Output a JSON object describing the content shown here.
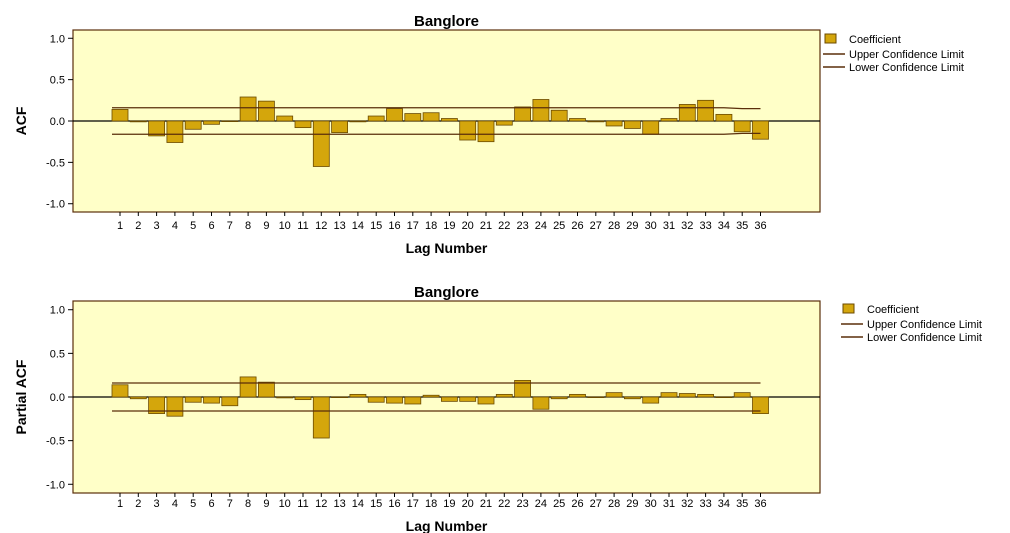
{
  "chart_data": [
    {
      "type": "bar",
      "title": "Banglore",
      "xlabel": "Lag Number",
      "ylabel": "ACF",
      "ylim": [
        -1.1,
        1.1
      ],
      "yticks": [
        "1.0",
        "0.5",
        "0.0",
        "-0.5",
        "-1.0"
      ],
      "categories": [
        "1",
        "2",
        "3",
        "4",
        "5",
        "6",
        "7",
        "8",
        "9",
        "10",
        "11",
        "12",
        "13",
        "14",
        "15",
        "16",
        "17",
        "18",
        "19",
        "20",
        "21",
        "22",
        "23",
        "24",
        "25",
        "26",
        "27",
        "28",
        "29",
        "30",
        "31",
        "32",
        "33",
        "34",
        "35",
        "36"
      ],
      "series": [
        {
          "name": "Coefficient",
          "values": [
            0.14,
            -0.01,
            -0.18,
            -0.26,
            -0.1,
            -0.04,
            0.0,
            0.29,
            0.24,
            0.06,
            -0.08,
            -0.55,
            -0.14,
            -0.01,
            0.06,
            0.15,
            0.09,
            0.1,
            0.03,
            -0.23,
            -0.25,
            -0.05,
            0.17,
            0.26,
            0.13,
            0.03,
            -0.01,
            -0.06,
            -0.09,
            -0.16,
            0.03,
            0.2,
            0.25,
            0.08,
            -0.13,
            -0.22
          ]
        },
        {
          "name": "Upper Confidence Limit",
          "values": [
            0.16,
            0.16,
            0.16,
            0.16,
            0.16,
            0.16,
            0.16,
            0.16,
            0.16,
            0.16,
            0.16,
            0.16,
            0.16,
            0.16,
            0.16,
            0.16,
            0.16,
            0.16,
            0.16,
            0.16,
            0.16,
            0.16,
            0.16,
            0.16,
            0.16,
            0.16,
            0.16,
            0.16,
            0.16,
            0.16,
            0.16,
            0.16,
            0.16,
            0.16,
            0.15,
            0.15
          ]
        },
        {
          "name": "Lower Confidence Limit",
          "values": [
            -0.16,
            -0.16,
            -0.16,
            -0.16,
            -0.16,
            -0.16,
            -0.16,
            -0.16,
            -0.16,
            -0.16,
            -0.16,
            -0.16,
            -0.16,
            -0.16,
            -0.16,
            -0.16,
            -0.16,
            -0.16,
            -0.16,
            -0.16,
            -0.16,
            -0.16,
            -0.16,
            -0.16,
            -0.16,
            -0.16,
            -0.16,
            -0.16,
            -0.16,
            -0.16,
            -0.16,
            -0.16,
            -0.16,
            -0.16,
            -0.15,
            -0.15
          ]
        }
      ],
      "legend_position": "right",
      "colors": {
        "bar": "#d4a60c",
        "bar_stroke": "#6b4a00",
        "plot_bg": "#ffffc8",
        "line": "#5a2e0a",
        "frame": "#5a2e0a"
      }
    },
    {
      "type": "bar",
      "title": "Banglore",
      "xlabel": "Lag Number",
      "ylabel": "Partial ACF",
      "ylim": [
        -1.1,
        1.1
      ],
      "yticks": [
        "1.0",
        "0.5",
        "0.0",
        "-0.5",
        "-1.0"
      ],
      "categories": [
        "1",
        "2",
        "3",
        "4",
        "5",
        "6",
        "7",
        "8",
        "9",
        "10",
        "11",
        "12",
        "13",
        "14",
        "15",
        "16",
        "17",
        "18",
        "19",
        "20",
        "21",
        "22",
        "23",
        "24",
        "25",
        "26",
        "27",
        "28",
        "29",
        "30",
        "31",
        "32",
        "33",
        "34",
        "35",
        "36"
      ],
      "series": [
        {
          "name": "Coefficient",
          "values": [
            0.14,
            -0.02,
            -0.19,
            -0.22,
            -0.06,
            -0.07,
            -0.1,
            0.23,
            0.17,
            -0.01,
            -0.03,
            -0.47,
            0.0,
            0.03,
            -0.06,
            -0.07,
            -0.08,
            0.02,
            -0.05,
            -0.05,
            -0.08,
            0.03,
            0.19,
            -0.14,
            -0.02,
            0.03,
            0.0,
            0.05,
            -0.02,
            -0.07,
            0.05,
            0.04,
            0.03,
            0.0,
            0.05,
            -0.19
          ]
        },
        {
          "name": "Upper Confidence Limit",
          "values": [
            0.16,
            0.16,
            0.16,
            0.16,
            0.16,
            0.16,
            0.16,
            0.16,
            0.16,
            0.16,
            0.16,
            0.16,
            0.16,
            0.16,
            0.16,
            0.16,
            0.16,
            0.16,
            0.16,
            0.16,
            0.16,
            0.16,
            0.16,
            0.16,
            0.16,
            0.16,
            0.16,
            0.16,
            0.16,
            0.16,
            0.16,
            0.16,
            0.16,
            0.16,
            0.16,
            0.16
          ]
        },
        {
          "name": "Lower Confidence Limit",
          "values": [
            -0.16,
            -0.16,
            -0.16,
            -0.16,
            -0.16,
            -0.16,
            -0.16,
            -0.16,
            -0.16,
            -0.16,
            -0.16,
            -0.16,
            -0.16,
            -0.16,
            -0.16,
            -0.16,
            -0.16,
            -0.16,
            -0.16,
            -0.16,
            -0.16,
            -0.16,
            -0.16,
            -0.16,
            -0.16,
            -0.16,
            -0.16,
            -0.16,
            -0.16,
            -0.16,
            -0.16,
            -0.16,
            -0.16,
            -0.16,
            -0.16,
            -0.16
          ]
        }
      ],
      "legend_position": "right",
      "colors": {
        "bar": "#d4a60c",
        "bar_stroke": "#6b4a00",
        "plot_bg": "#ffffc8",
        "line": "#5a2e0a",
        "frame": "#5a2e0a"
      }
    }
  ]
}
